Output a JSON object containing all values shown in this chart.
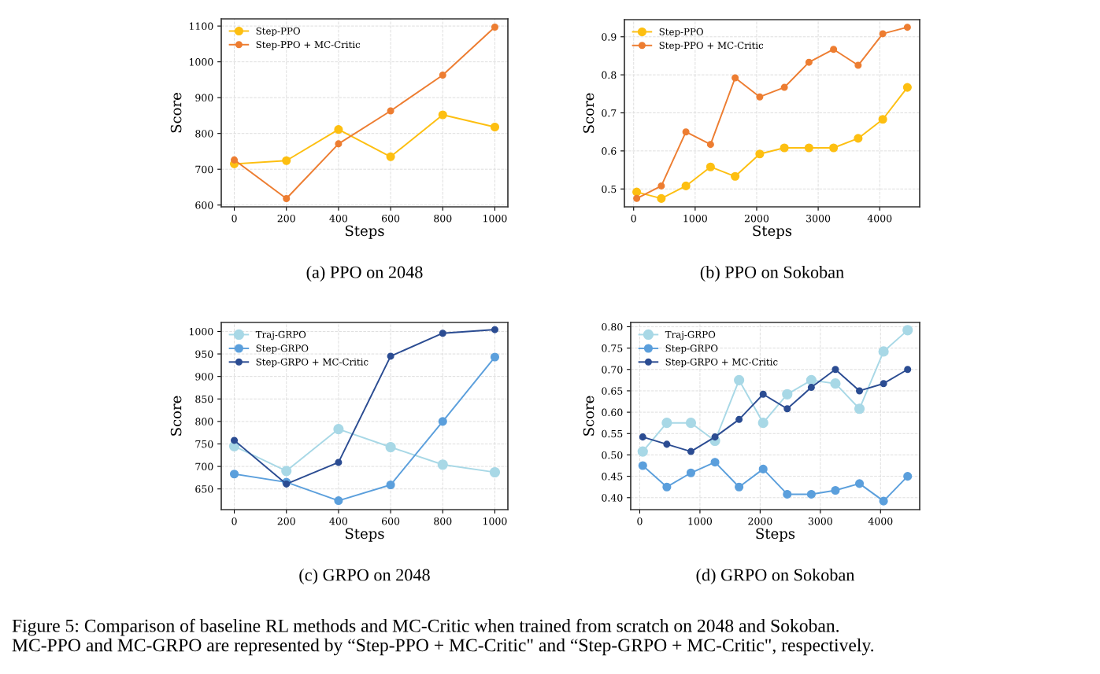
{
  "chart_data": [
    {
      "type": "line",
      "xlabel": "Steps",
      "ylabel": "Score",
      "x": [
        0,
        200,
        400,
        600,
        800,
        1000
      ],
      "xlim": [
        -50,
        1050
      ],
      "ylim": [
        595,
        1120
      ],
      "xticks": [
        0,
        200,
        400,
        600,
        800,
        1000
      ],
      "yticks": [
        600,
        700,
        800,
        900,
        1000,
        1100
      ],
      "grid": true,
      "legend": "top left",
      "marker": "circle",
      "line_style": "solid",
      "series": [
        {
          "name": "Step-PPO",
          "color": "#fdbf11",
          "values": [
            715,
            724,
            811,
            735,
            852,
            818
          ]
        },
        {
          "name": "Step-PPO + MC-Critic",
          "color": "#ed7d31",
          "values": [
            726,
            618,
            771,
            863,
            963,
            1097
          ]
        }
      ],
      "annotations": [
        "(a) PPO on 2048"
      ]
    },
    {
      "type": "line",
      "xlabel": "Steps",
      "ylabel": "Score",
      "x": [
        50,
        450,
        850,
        1250,
        1650,
        2050,
        2450,
        2850,
        3250,
        3650,
        4050,
        4450
      ],
      "xlim": [
        -150,
        4650
      ],
      "ylim": [
        0.453,
        0.945
      ],
      "xticks": [
        0,
        1000,
        2000,
        3000,
        4000
      ],
      "yticks": [
        0.5,
        0.6,
        0.7,
        0.8,
        0.9
      ],
      "grid": true,
      "legend": "top left",
      "marker": "circle",
      "line_style": "solid",
      "series": [
        {
          "name": "Step-PPO",
          "color": "#fdbf11",
          "values": [
            0.492,
            0.475,
            0.508,
            0.558,
            0.533,
            0.592,
            0.608,
            0.608,
            0.608,
            0.633,
            0.683,
            0.767
          ]
        },
        {
          "name": "Step-PPO + MC-Critic",
          "color": "#ed7d31",
          "values": [
            0.475,
            0.508,
            0.65,
            0.617,
            0.792,
            0.742,
            0.767,
            0.833,
            0.867,
            0.825,
            0.908,
            0.925
          ]
        }
      ],
      "annotations": [
        "(b) PPO on Sokoban"
      ]
    },
    {
      "type": "line",
      "xlabel": "Steps",
      "ylabel": "Score",
      "x": [
        0,
        200,
        400,
        600,
        800,
        1000
      ],
      "xlim": [
        -50,
        1050
      ],
      "ylim": [
        604,
        1020
      ],
      "xticks": [
        0,
        200,
        400,
        600,
        800,
        1000
      ],
      "yticks": [
        650,
        700,
        750,
        800,
        850,
        900,
        950,
        1000
      ],
      "grid": true,
      "legend": "top left",
      "marker": "circle",
      "line_style": "solid",
      "series": [
        {
          "name": "Traj-GRPO",
          "color": "#a8d8e6",
          "values": [
            745,
            690,
            783,
            743,
            704,
            687
          ]
        },
        {
          "name": "Step-GRPO",
          "color": "#5b9fdc",
          "values": [
            683,
            665,
            624,
            659,
            800,
            943
          ]
        },
        {
          "name": "Step-GRPO + MC-Critic",
          "color": "#2b4c92",
          "values": [
            758,
            661,
            709,
            945,
            996,
            1004
          ]
        }
      ],
      "annotations": [
        "(c) GRPO on 2048"
      ]
    },
    {
      "type": "line",
      "xlabel": "Steps",
      "ylabel": "Score",
      "x": [
        50,
        450,
        850,
        1250,
        1650,
        2050,
        2450,
        2850,
        3250,
        3650,
        4050,
        4450
      ],
      "xlim": [
        -150,
        4650
      ],
      "ylim": [
        0.372,
        0.81
      ],
      "xticks": [
        0,
        1000,
        2000,
        3000,
        4000
      ],
      "yticks": [
        {
          "value": 0.4,
          "label": "0.40"
        },
        {
          "value": 0.45,
          "label": "0.45"
        },
        {
          "value": 0.5,
          "label": "0.50"
        },
        {
          "value": 0.55,
          "label": "0.55"
        },
        {
          "value": 0.6,
          "label": "0.60"
        },
        {
          "value": 0.65,
          "label": "0.65"
        },
        {
          "value": 0.7,
          "label": "0.70"
        },
        {
          "value": 0.75,
          "label": "0.75"
        },
        {
          "value": 0.8,
          "label": "0.80"
        }
      ],
      "grid": true,
      "legend": "top left",
      "marker": "circle",
      "line_style": "solid",
      "series": [
        {
          "name": "Traj-GRPO",
          "color": "#a8d8e6",
          "values": [
            0.508,
            0.575,
            0.575,
            0.533,
            0.675,
            0.575,
            0.642,
            0.675,
            0.667,
            0.608,
            0.742,
            0.792
          ]
        },
        {
          "name": "Step-GRPO",
          "color": "#5b9fdc",
          "values": [
            0.475,
            0.425,
            0.458,
            0.483,
            0.425,
            0.467,
            0.408,
            0.408,
            0.417,
            0.433,
            0.392,
            0.45
          ]
        },
        {
          "name": "Step-GRPO + MC-Critic",
          "color": "#2b4c92",
          "values": [
            0.542,
            0.525,
            0.508,
            0.542,
            0.583,
            0.642,
            0.608,
            0.658,
            0.7,
            0.65,
            0.667,
            0.7
          ]
        }
      ],
      "annotations": [
        "(d) GRPO on Sokoban",
        "Figure 5: Comparison of baseline RL methods and MC-Critic when trained from scratch on 2048 and Sokoban.\nMC-PPO and MC-GRPO are represented by “Step-PPO + MC-Critic\" and “Step-GRPO + MC-Critic\", respectively."
      ]
    }
  ]
}
